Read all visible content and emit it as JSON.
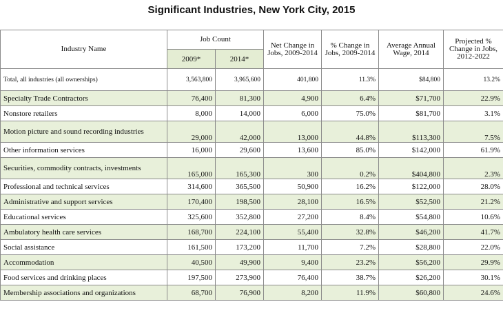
{
  "title": "Significant Industries, New York City, 2015",
  "headers": {
    "industry_name": "Industry Name",
    "job_count": "Job Count",
    "year_2009": "2009*",
    "year_2014": "2014*",
    "net_change": "Net Change in Jobs, 2009-2014",
    "pct_change": "% Change in Jobs, 2009-2014",
    "avg_wage": "Average Annual Wage, 2014",
    "projected": "Projected % Change in Jobs, 2012-2022"
  },
  "total": {
    "name": "Total, all industries (all ownerships)",
    "jobs_2009": "3,563,800",
    "jobs_2014": "3,965,600",
    "net_change": "401,800",
    "pct_change": "11.3%",
    "avg_wage": "$84,800",
    "projected": "13.2%"
  },
  "rows": [
    {
      "name": "Specialty Trade Contractors",
      "jobs_2009": "76,400",
      "jobs_2014": "81,300",
      "net_change": "4,900",
      "pct_change": "6.4%",
      "avg_wage": "$71,700",
      "projected": "22.9%"
    },
    {
      "name": "Nonstore retailers",
      "jobs_2009": "8,000",
      "jobs_2014": "14,000",
      "net_change": "6,000",
      "pct_change": "75.0%",
      "avg_wage": "$81,700",
      "projected": "3.1%"
    },
    {
      "name": "Motion picture and sound recording industries",
      "jobs_2009": "29,000",
      "jobs_2014": "42,000",
      "net_change": "13,000",
      "pct_change": "44.8%",
      "avg_wage": "$113,300",
      "projected": "7.5%"
    },
    {
      "name": "Other information services",
      "jobs_2009": "16,000",
      "jobs_2014": "29,600",
      "net_change": "13,600",
      "pct_change": "85.0%",
      "avg_wage": "$142,000",
      "projected": "61.9%"
    },
    {
      "name": "Securities, commodity contracts, investments",
      "jobs_2009": "165,000",
      "jobs_2014": "165,300",
      "net_change": "300",
      "pct_change": "0.2%",
      "avg_wage": "$404,800",
      "projected": "2.3%"
    },
    {
      "name": "Professional and technical services",
      "jobs_2009": "314,600",
      "jobs_2014": "365,500",
      "net_change": "50,900",
      "pct_change": "16.2%",
      "avg_wage": "$122,000",
      "projected": "28.0%"
    },
    {
      "name": "Administrative and support services",
      "jobs_2009": "170,400",
      "jobs_2014": "198,500",
      "net_change": "28,100",
      "pct_change": "16.5%",
      "avg_wage": "$52,500",
      "projected": "21.2%"
    },
    {
      "name": "Educational services",
      "jobs_2009": "325,600",
      "jobs_2014": "352,800",
      "net_change": "27,200",
      "pct_change": "8.4%",
      "avg_wage": "$54,800",
      "projected": "10.6%"
    },
    {
      "name": "Ambulatory health care services",
      "jobs_2009": "168,700",
      "jobs_2014": "224,100",
      "net_change": "55,400",
      "pct_change": "32.8%",
      "avg_wage": "$46,200",
      "projected": "41.7%"
    },
    {
      "name": "Social assistance",
      "jobs_2009": "161,500",
      "jobs_2014": "173,200",
      "net_change": "11,700",
      "pct_change": "7.2%",
      "avg_wage": "$28,800",
      "projected": "22.0%"
    },
    {
      "name": "Accommodation",
      "jobs_2009": "40,500",
      "jobs_2014": "49,900",
      "net_change": "9,400",
      "pct_change": "23.2%",
      "avg_wage": "$56,200",
      "projected": "29.9%"
    },
    {
      "name": "Food services and drinking places",
      "jobs_2009": "197,500",
      "jobs_2014": "273,900",
      "net_change": "76,400",
      "pct_change": "38.7%",
      "avg_wage": "$26,200",
      "projected": "30.1%"
    },
    {
      "name": "Membership associations and organizations",
      "jobs_2009": "68,700",
      "jobs_2014": "76,900",
      "net_change": "8,200",
      "pct_change": "11.9%",
      "avg_wage": "$60,800",
      "projected": "24.6%"
    }
  ]
}
